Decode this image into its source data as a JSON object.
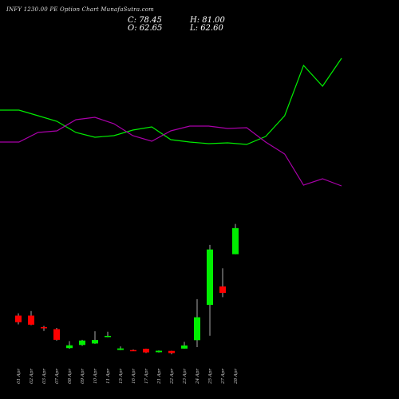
{
  "title": "INFY 1230.00  PE Option  Chart MunafaSutra.com",
  "ohlc": {
    "close_label": "C: 78.45",
    "high_label": "H: 81.00",
    "open_label": "O: 62.65",
    "low_label": "L: 62.60"
  },
  "colors": {
    "background": "#000000",
    "bull": "#00ee00",
    "bear": "#ff0000",
    "green_line": "#00ee00",
    "purple_line": "#aa00aa",
    "text": "#ffffff"
  },
  "chart_data": {
    "type": "candlestick",
    "categories": [
      "01 Apr",
      "02 Apr",
      "03 Apr",
      "07 Apr",
      "08 Apr",
      "09 Apr",
      "10 Apr",
      "11 Apr",
      "15 Apr",
      "16 Apr",
      "17 Apr",
      "21 Apr",
      "22 Apr",
      "23 Apr",
      "24 Apr",
      "25 Apr",
      "27 Apr",
      "28 Apr"
    ],
    "ylim": [
      0,
      90
    ],
    "candles": [
      {
        "open": 25.4,
        "high": 26.8,
        "low": 20.1,
        "close": 21.4
      },
      {
        "open": 25.4,
        "high": 28.2,
        "low": 19.6,
        "close": 19.9
      },
      {
        "open": 18.4,
        "high": 19.2,
        "low": 16.1,
        "close": 17.7
      },
      {
        "open": 17.2,
        "high": 17.9,
        "low": 10.2,
        "close": 10.7
      },
      {
        "open": 5.7,
        "high": 9.9,
        "low": 5.3,
        "close": 7.4
      },
      {
        "open": 7.6,
        "high": 10.7,
        "low": 7.1,
        "close": 10.3
      },
      {
        "open": 8.5,
        "high": 15.9,
        "low": 8.3,
        "close": 10.6
      },
      {
        "open": 13.0,
        "high": 15.6,
        "low": 12.3,
        "close": 13.1
      },
      {
        "open": 4.6,
        "high": 6.7,
        "low": 4.5,
        "close": 5.5
      },
      {
        "open": 4.5,
        "high": 4.9,
        "low": 3.9,
        "close": 4.2
      },
      {
        "open": 5.3,
        "high": 5.4,
        "low": 2.7,
        "close": 3.1
      },
      {
        "open": 3.2,
        "high": 4.3,
        "low": 3.0,
        "close": 4.1
      },
      {
        "open": 4.0,
        "high": 4.1,
        "low": 2.0,
        "close": 2.7
      },
      {
        "open": 5.4,
        "high": 9.5,
        "low": 5.4,
        "close": 7.3
      },
      {
        "open": 10.5,
        "high": 35.4,
        "low": 6.3,
        "close": 24.4
      },
      {
        "open": 31.9,
        "high": 68.3,
        "low": 13.2,
        "close": 65.5
      },
      {
        "open": 43.1,
        "high": 54.1,
        "low": 36.6,
        "close": 39.2
      },
      {
        "open": 62.65,
        "high": 81.0,
        "low": 62.6,
        "close": 78.45
      }
    ],
    "overlays": [
      {
        "color": "green",
        "values": [
          138,
          138,
          145,
          152,
          166,
          172,
          170,
          163,
          159,
          175,
          178,
          180,
          179,
          181,
          171,
          145,
          82,
          108,
          73
        ]
      },
      {
        "color": "purple",
        "values": [
          178,
          178,
          166,
          164,
          150,
          147,
          155,
          170,
          177,
          164,
          158,
          158,
          161,
          160,
          178,
          193,
          232,
          224,
          233
        ]
      }
    ]
  }
}
